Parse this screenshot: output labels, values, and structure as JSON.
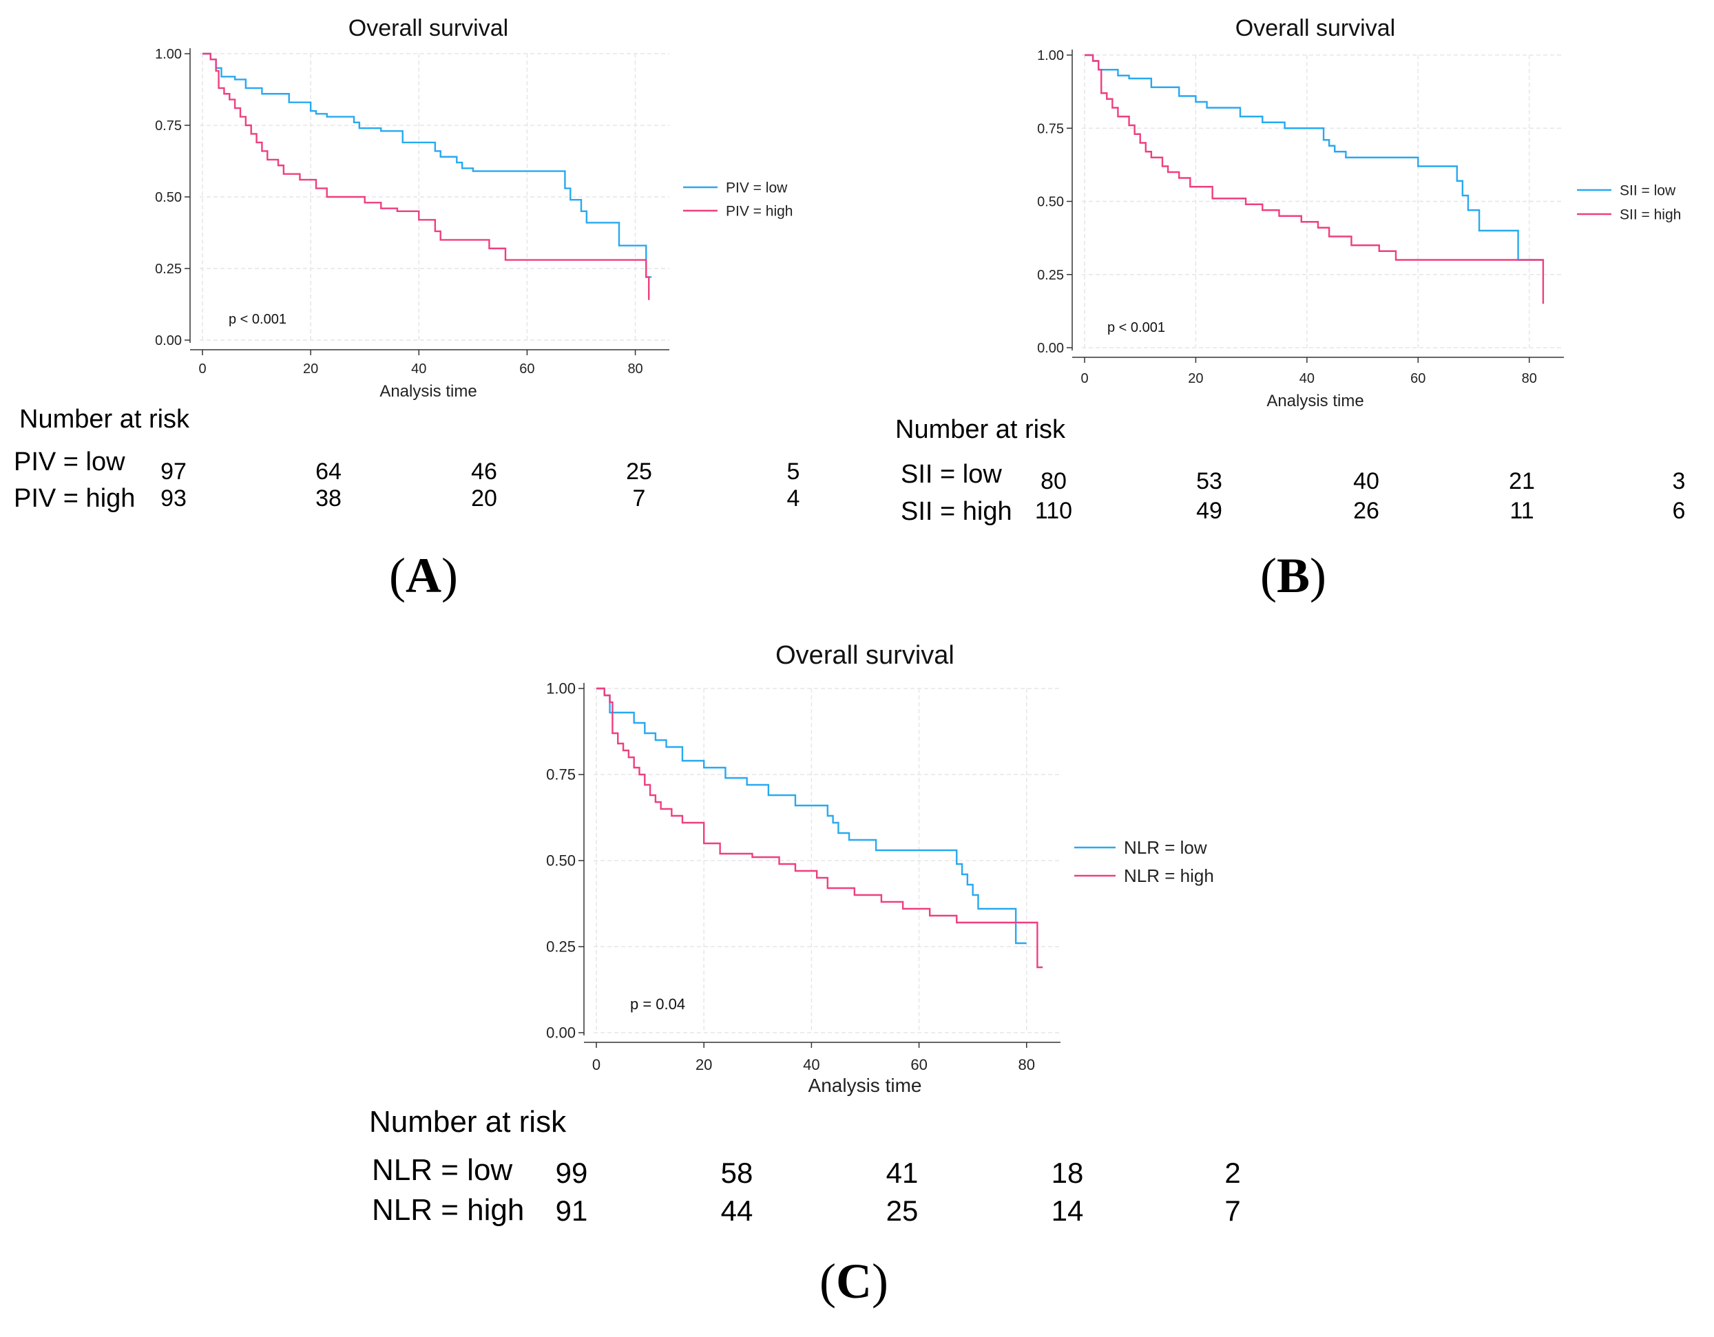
{
  "chart_data": [
    {
      "id": "A",
      "type": "line",
      "step": true,
      "title": "Overall survival",
      "xlabel": "Analysis time",
      "ylabel": "",
      "xlim": [
        0,
        84
      ],
      "ylim": [
        0,
        1
      ],
      "xticks": [
        "0",
        "20",
        "40",
        "60",
        "80"
      ],
      "yticks": [
        "0.00",
        "0.25",
        "0.50",
        "0.75",
        "1.00"
      ],
      "grid": true,
      "legend_position": "right",
      "p_text": "p < 0.001",
      "series": [
        {
          "name": "PIV = low",
          "color": "#27a9f0",
          "x": [
            0,
            1.5,
            2.5,
            3.5,
            6,
            8,
            11,
            16,
            20,
            21,
            23,
            28,
            29,
            33,
            37,
            43,
            44,
            47,
            48,
            50,
            55,
            67,
            68,
            70,
            71,
            77,
            82,
            83
          ],
          "y": [
            1.0,
            0.98,
            0.95,
            0.92,
            0.91,
            0.88,
            0.86,
            0.83,
            0.8,
            0.79,
            0.78,
            0.76,
            0.74,
            0.73,
            0.69,
            0.66,
            0.64,
            0.62,
            0.6,
            0.59,
            0.59,
            0.53,
            0.49,
            0.45,
            0.41,
            0.33,
            0.22,
            0.22
          ]
        },
        {
          "name": "PIV = high",
          "color": "#ee3f7f",
          "x": [
            0,
            1.5,
            2.5,
            3,
            4,
            5,
            6,
            7,
            8,
            9,
            10,
            11,
            12,
            14,
            15,
            18,
            21,
            23,
            25,
            30,
            33,
            36,
            40,
            43,
            44,
            48,
            53,
            56,
            82,
            82.5
          ],
          "y": [
            1.0,
            0.98,
            0.94,
            0.88,
            0.86,
            0.84,
            0.81,
            0.78,
            0.75,
            0.72,
            0.69,
            0.66,
            0.63,
            0.61,
            0.58,
            0.56,
            0.53,
            0.5,
            0.5,
            0.48,
            0.46,
            0.45,
            0.42,
            0.38,
            0.35,
            0.35,
            0.32,
            0.28,
            0.22,
            0.14
          ]
        }
      ],
      "risk_table": {
        "title": "Number at risk",
        "rows": [
          {
            "label": "PIV = low",
            "values": [
              "97",
              "64",
              "46",
              "25",
              "5"
            ]
          },
          {
            "label": "PIV = high",
            "values": [
              "93",
              "38",
              "20",
              "7",
              "4"
            ]
          }
        ]
      },
      "panel_label": "A"
    },
    {
      "id": "B",
      "type": "line",
      "step": true,
      "title": "Overall survival",
      "xlabel": "Analysis time",
      "ylabel": "",
      "xlim": [
        0,
        84
      ],
      "ylim": [
        0,
        1
      ],
      "xticks": [
        "0",
        "20",
        "40",
        "60",
        "80"
      ],
      "yticks": [
        "0.00",
        "0.25",
        "0.50",
        "0.75",
        "1.00"
      ],
      "grid": true,
      "legend_position": "right",
      "p_text": "p < 0.001",
      "series": [
        {
          "name": "SII = low",
          "color": "#27a9f0",
          "x": [
            0,
            1.5,
            2.5,
            6,
            8,
            12,
            17,
            20,
            22,
            28,
            32,
            36,
            43,
            44,
            45,
            47,
            51,
            60,
            67,
            68,
            69,
            71,
            78,
            82.5
          ],
          "y": [
            1.0,
            0.98,
            0.95,
            0.93,
            0.92,
            0.89,
            0.86,
            0.84,
            0.82,
            0.79,
            0.77,
            0.75,
            0.71,
            0.69,
            0.67,
            0.65,
            0.65,
            0.62,
            0.57,
            0.52,
            0.47,
            0.4,
            0.3,
            0.3
          ]
        },
        {
          "name": "SII = high",
          "color": "#ee3f7f",
          "x": [
            0,
            1.5,
            2.5,
            3,
            4,
            5,
            6,
            8,
            9,
            10,
            11,
            12,
            14,
            15,
            17,
            19,
            23,
            29,
            32,
            35,
            39,
            42,
            44,
            48,
            53,
            56,
            82,
            82.5
          ],
          "y": [
            1.0,
            0.98,
            0.95,
            0.87,
            0.85,
            0.82,
            0.79,
            0.76,
            0.73,
            0.7,
            0.67,
            0.65,
            0.62,
            0.6,
            0.58,
            0.55,
            0.51,
            0.49,
            0.47,
            0.45,
            0.43,
            0.41,
            0.38,
            0.35,
            0.33,
            0.3,
            0.3,
            0.15
          ]
        }
      ],
      "risk_table": {
        "title": "Number at risk",
        "rows": [
          {
            "label": "SII = low",
            "values": [
              "80",
              "53",
              "40",
              "21",
              "3"
            ]
          },
          {
            "label": "SII = high",
            "values": [
              "110",
              "49",
              "26",
              "11",
              "6"
            ]
          }
        ]
      },
      "panel_label": "B"
    },
    {
      "id": "C",
      "type": "line",
      "step": true,
      "title": "Overall survival",
      "xlabel": "Analysis time",
      "ylabel": "",
      "xlim": [
        0,
        84
      ],
      "ylim": [
        0,
        1
      ],
      "xticks": [
        "0",
        "20",
        "40",
        "60",
        "80"
      ],
      "yticks": [
        "0.00",
        "0.25",
        "0.50",
        "0.75",
        "1.00"
      ],
      "grid": true,
      "legend_position": "right",
      "p_text": "p = 0.04",
      "series": [
        {
          "name": "NLR = low",
          "color": "#27a9f0",
          "x": [
            0,
            1.5,
            2.5,
            7,
            9,
            11,
            13,
            16,
            20,
            24,
            28,
            32,
            37,
            43,
            44,
            45,
            47,
            52,
            67,
            68,
            69,
            70,
            71,
            78,
            80
          ],
          "y": [
            1.0,
            0.98,
            0.93,
            0.9,
            0.87,
            0.85,
            0.83,
            0.79,
            0.77,
            0.74,
            0.72,
            0.69,
            0.66,
            0.63,
            0.61,
            0.58,
            0.56,
            0.53,
            0.49,
            0.46,
            0.43,
            0.4,
            0.36,
            0.26,
            0.26
          ]
        },
        {
          "name": "NLR = high",
          "color": "#ee3f7f",
          "x": [
            0,
            1.5,
            2.5,
            3,
            4,
            5,
            6,
            7,
            8,
            9,
            10,
            11,
            12,
            14,
            16,
            20,
            23,
            29,
            34,
            37,
            41,
            43,
            48,
            53,
            57,
            62,
            67,
            82,
            83
          ],
          "y": [
            1.0,
            0.98,
            0.96,
            0.87,
            0.84,
            0.82,
            0.8,
            0.77,
            0.75,
            0.72,
            0.69,
            0.67,
            0.65,
            0.63,
            0.61,
            0.55,
            0.52,
            0.51,
            0.49,
            0.47,
            0.45,
            0.42,
            0.4,
            0.38,
            0.36,
            0.34,
            0.32,
            0.19,
            0.19
          ]
        }
      ],
      "risk_table": {
        "title": "Number at risk",
        "rows": [
          {
            "label": "NLR = low",
            "values": [
              "99",
              "58",
              "41",
              "18",
              "2"
            ]
          },
          {
            "label": "NLR = high",
            "values": [
              "91",
              "44",
              "25",
              "14",
              "7"
            ]
          }
        ]
      },
      "panel_label": "C"
    }
  ]
}
